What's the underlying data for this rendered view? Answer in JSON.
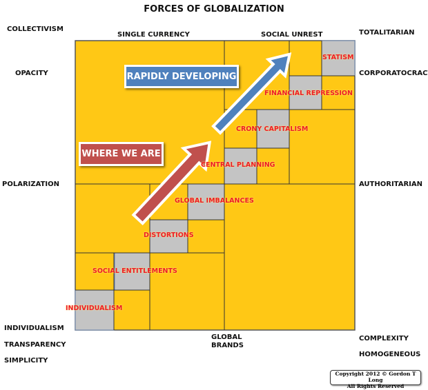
{
  "title": "FORCES OF GLOBALIZATION",
  "colors": {
    "field": "#ffc815",
    "cell": "#c4c4c4",
    "label": "#ee1c25",
    "red_arrow": "#c0504d",
    "blue_arrow": "#4f81bd"
  },
  "left_labels": {
    "collectivism": "COLLECTIVISM",
    "opacity": "OPACITY",
    "polarization": "POLARIZATION",
    "individualism": "INDIVIDUALISM",
    "transparency": "TRANSPARENCY",
    "simplicity": "SIMPLICITY"
  },
  "top_labels": {
    "single_currency": "SINGLE CURRENCY",
    "social_unrest": "SOCIAL UNREST"
  },
  "right_labels": {
    "totalitarian": "TOTALITARIAN",
    "corporatocracy": "CORPORATOCRACY",
    "authoritarian": "AUTHORITARIAN",
    "complexity": "COMPLEXITY",
    "homogeneous": "HOMOGENEOUS"
  },
  "bottom_labels": {
    "global": "GLOBAL",
    "brands": "BRANDS"
  },
  "stages": [
    "INDIVIDUALISM",
    "SOCIAL ENTITLEMENTS",
    "DISTORTIONS",
    "GLOBAL IMBALANCES",
    "CENTRAL PLANNING",
    "CRONY CAPITALISM",
    "FINANCIAL REPRESSION",
    "STATISM"
  ],
  "callouts": {
    "where_we_are": "WHERE WE ARE",
    "rapidly_developing": "RAPIDLY DEVELOPING"
  },
  "copyright": {
    "line1": "Copyright 2012 © Gordon T Long",
    "line2": "All Rights Reserved"
  }
}
